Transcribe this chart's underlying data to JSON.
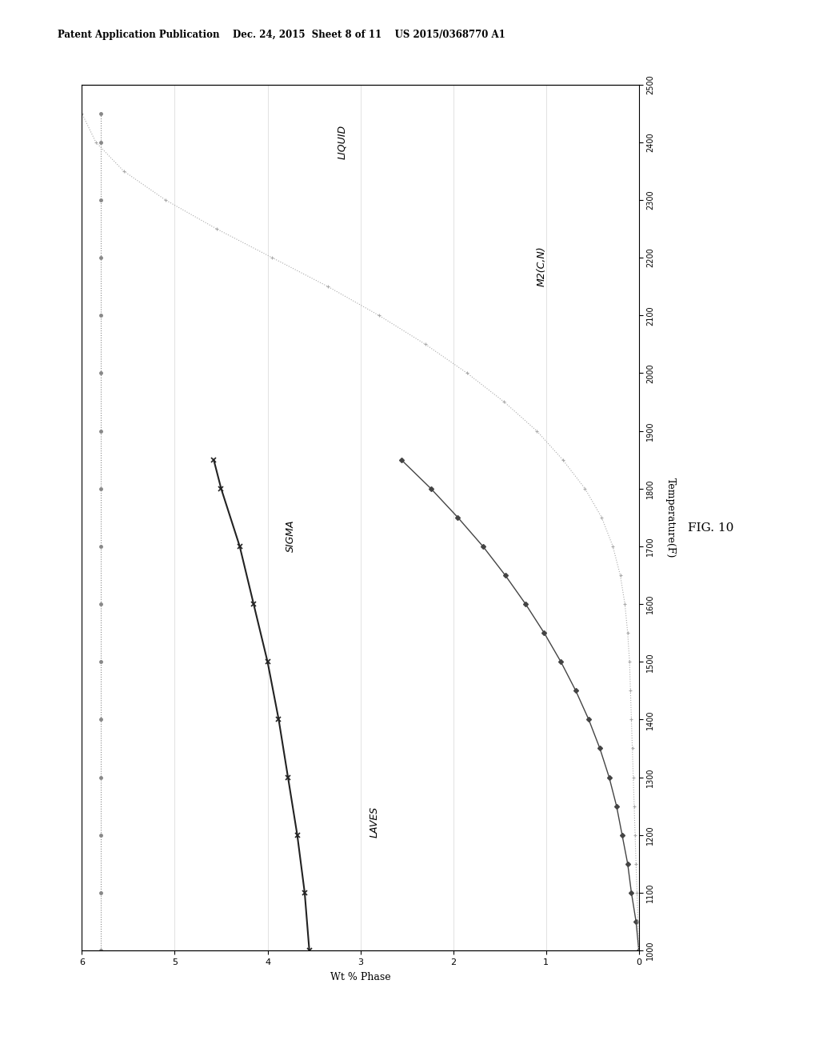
{
  "title_header": "Patent Application Publication    Dec. 24, 2015  Sheet 8 of 11    US 2015/0368770 A1",
  "fig_label": "FIG. 10",
  "temp_label": "Temperature(F)",
  "wt_label": "Wt % Phase",
  "temp_min": 1000,
  "temp_max": 2500,
  "wt_min": 0,
  "wt_max": 6,
  "temp_ticks": [
    1000,
    1100,
    1200,
    1300,
    1400,
    1500,
    1600,
    1700,
    1800,
    1900,
    2000,
    2100,
    2200,
    2300,
    2400,
    2500
  ],
  "wt_ticks": [
    0,
    1,
    2,
    3,
    4,
    5,
    6
  ],
  "liquid_label": "LIQUID",
  "sigma_label": "SIGMA",
  "laves_label": "LAVES",
  "m2cn_label": "M2(C,N)",
  "liquid_temp": [
    1000,
    1100,
    1200,
    1300,
    1400,
    1500,
    1600,
    1700,
    1800,
    1900,
    2000,
    2100,
    2200,
    2300,
    2400,
    2450
  ],
  "liquid_wt": [
    5.8,
    5.8,
    5.8,
    5.8,
    5.8,
    5.8,
    5.8,
    5.8,
    5.8,
    5.8,
    5.8,
    5.8,
    5.8,
    5.8,
    5.8,
    5.8
  ],
  "sigma_temp": [
    1000,
    1100,
    1200,
    1300,
    1400,
    1500,
    1600,
    1700,
    1800,
    1850
  ],
  "sigma_wt": [
    3.55,
    3.6,
    3.68,
    3.78,
    3.88,
    4.0,
    4.15,
    4.3,
    4.5,
    4.58
  ],
  "laves_temp": [
    1000,
    1050,
    1100,
    1150,
    1200,
    1250,
    1300,
    1350,
    1400,
    1450,
    1500,
    1550,
    1600,
    1650,
    1700,
    1750,
    1800,
    1850
  ],
  "laves_wt": [
    0.0,
    0.03,
    0.08,
    0.12,
    0.18,
    0.24,
    0.32,
    0.42,
    0.54,
    0.68,
    0.84,
    1.02,
    1.22,
    1.44,
    1.68,
    1.95,
    2.24,
    2.56
  ],
  "m2cn_temp": [
    1000,
    1050,
    1100,
    1150,
    1200,
    1250,
    1300,
    1350,
    1400,
    1450,
    1500,
    1550,
    1600,
    1650,
    1700,
    1750,
    1800,
    1850,
    1900,
    1950,
    2000,
    2050,
    2100,
    2150,
    2200,
    2250,
    2300,
    2350,
    2400,
    2450
  ],
  "m2cn_wt": [
    0.0,
    0.01,
    0.02,
    0.03,
    0.04,
    0.05,
    0.06,
    0.07,
    0.08,
    0.09,
    0.1,
    0.12,
    0.15,
    0.2,
    0.28,
    0.4,
    0.58,
    0.82,
    1.1,
    1.45,
    1.85,
    2.3,
    2.8,
    3.35,
    3.95,
    4.55,
    5.1,
    5.55,
    5.85,
    6.0
  ],
  "liquid_color": "#888888",
  "sigma_color": "#222222",
  "laves_color": "#444444",
  "m2cn_color": "#aaaaaa",
  "bg_color": "#ffffff",
  "grid_color": "#cccccc"
}
